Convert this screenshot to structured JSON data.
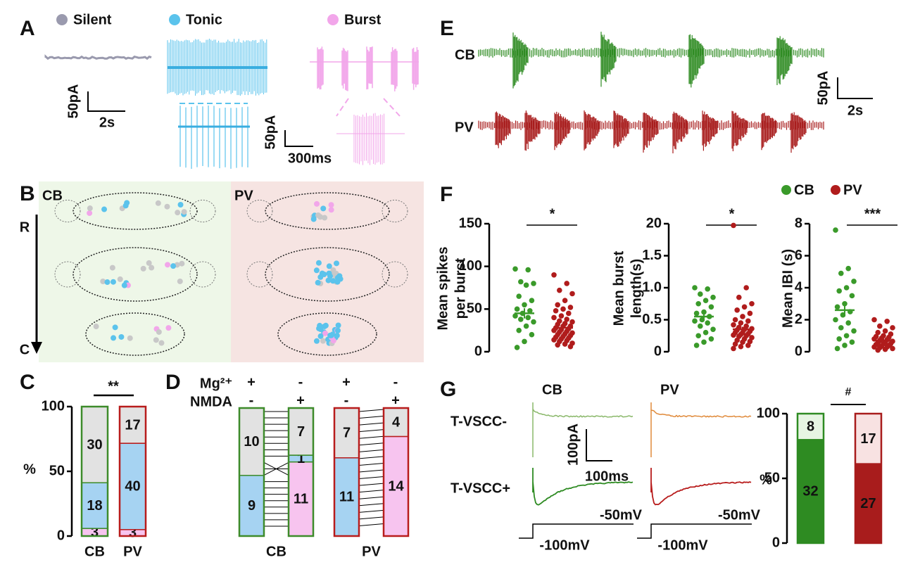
{
  "A": {
    "label": "A",
    "legend": [
      {
        "name": "Silent",
        "color": "#9a9aae"
      },
      {
        "name": "Tonic",
        "color": "#5bc3ec"
      },
      {
        "name": "Burst",
        "color": "#f2a6ea"
      }
    ],
    "scale_long": {
      "y": "50pA",
      "x": "2s"
    },
    "scale_zoom": {
      "y": "50pA",
      "x": "300ms"
    }
  },
  "B": {
    "label": "B",
    "groups": [
      "CB",
      "PV"
    ],
    "axis_top": "R",
    "axis_bottom": "C"
  },
  "C": {
    "label": "C",
    "significance": "**",
    "ylabel": "%",
    "ylim": [
      0,
      100
    ],
    "yticks": [
      0,
      50,
      100
    ],
    "categories": [
      "CB",
      "PV"
    ],
    "category_colors": [
      "#3d8b2a",
      "#b81c1c"
    ],
    "series": [
      {
        "color": "#f7c4ef",
        "values": [
          3,
          3
        ]
      },
      {
        "color": "#a6d3f2",
        "values": [
          18,
          40
        ]
      },
      {
        "color": "#e2e2e2",
        "values": [
          30,
          17
        ]
      }
    ]
  },
  "D": {
    "label": "D",
    "rows": [
      {
        "name": "Mg²⁺",
        "signs": [
          "+",
          "-",
          "+",
          "-"
        ]
      },
      {
        "name": "NMDA",
        "signs": [
          "-",
          "+",
          "-",
          "+"
        ]
      }
    ],
    "groups": [
      {
        "name": "CB",
        "color": "#3d8b2a",
        "bars": [
          {
            "values": [
              9,
              10
            ],
            "colors": [
              "#a6d3f2",
              "#e2e2e2"
            ]
          },
          {
            "values": [
              11,
              1,
              7
            ],
            "colors": [
              "#f7c4ef",
              "#a6d3f2",
              "#e2e2e2"
            ]
          }
        ]
      },
      {
        "name": "PV",
        "color": "#b81c1c",
        "bars": [
          {
            "values": [
              11,
              7
            ],
            "colors": [
              "#a6d3f2",
              "#e2e2e2"
            ]
          },
          {
            "values": [
              14,
              4
            ],
            "colors": [
              "#f7c4ef",
              "#e2e2e2"
            ]
          }
        ]
      }
    ]
  },
  "E": {
    "label": "E",
    "traces": [
      {
        "name": "CB",
        "color": "#2e8b22"
      },
      {
        "name": "PV",
        "color": "#a81c1c"
      }
    ],
    "scale": {
      "y": "50pA",
      "x": "2s"
    }
  },
  "F": {
    "label": "F",
    "legend": [
      {
        "name": "CB",
        "color": "#3a9a2a"
      },
      {
        "name": "PV",
        "color": "#b01c1c"
      }
    ],
    "plots": [
      {
        "type": "scatter",
        "ylabel": [
          "Mean spikes",
          "per burst"
        ],
        "ylim": [
          0,
          150
        ],
        "yticks": [
          0,
          50,
          100,
          150
        ],
        "significance": "*",
        "groups": [
          {
            "values": [
              97,
              96,
              82,
              80,
              78,
              65,
              60,
              55,
              50,
              48,
              45,
              42,
              40,
              38,
              35,
              30,
              25,
              20,
              12,
              5
            ],
            "mean": 45,
            "error": 6
          },
          {
            "values": [
              90,
              80,
              72,
              68,
              60,
              55,
              52,
              50,
              48,
              45,
              42,
              40,
              38,
              36,
              35,
              33,
              32,
              30,
              30,
              28,
              27,
              26,
              25,
              24,
              23,
              22,
              21,
              20,
              19,
              18,
              17,
              16,
              15,
              14,
              13,
              12,
              10,
              9,
              8,
              6
            ],
            "mean": 28,
            "error": 3
          }
        ]
      },
      {
        "type": "scatter",
        "ylabel": [
          "Mean burst",
          "length(s)"
        ],
        "ylim": [
          0,
          20
        ],
        "yticks": [
          0,
          0.5,
          {
            "value": 1,
            "label": "1.0"
          },
          1.5,
          20
        ],
        "significance": "*",
        "groups": [
          {
            "values": [
              1.0,
              0.98,
              0.9,
              0.85,
              0.8,
              0.75,
              0.7,
              0.62,
              0.6,
              0.55,
              0.5,
              0.48,
              0.45,
              0.4,
              0.35,
              0.3,
              0.25,
              0.2,
              0.15,
              0.1
            ],
            "mean": 0.55,
            "error": 0.06
          },
          {
            "values": [
              19,
              1.0,
              0.85,
              0.75,
              0.7,
              0.65,
              0.6,
              0.55,
              0.5,
              0.48,
              0.45,
              0.42,
              0.4,
              0.38,
              0.36,
              0.35,
              0.34,
              0.32,
              0.3,
              0.3,
              0.28,
              0.27,
              0.26,
              0.25,
              0.24,
              0.22,
              0.2,
              0.18,
              0.16,
              0.15,
              0.12,
              0.1,
              0.08,
              0.05
            ],
            "mean": 0.35,
            "error": 0.04
          }
        ]
      },
      {
        "type": "scatter",
        "ylabel": [
          "Mean IBI (s)"
        ],
        "ylim": [
          0,
          8
        ],
        "yticks": [
          0,
          2,
          4,
          6,
          8
        ],
        "significance": "***",
        "groups": [
          {
            "values": [
              7.6,
              5.2,
              4.9,
              4.4,
              4.0,
              3.8,
              3.5,
              3.0,
              2.8,
              2.5,
              2.3,
              2.0,
              1.8,
              1.5,
              1.3,
              1.0,
              0.8,
              0.6,
              0.4,
              0.2
            ],
            "mean": 2.6,
            "error": 0.4
          },
          {
            "values": [
              2.0,
              1.9,
              1.6,
              1.5,
              1.3,
              1.2,
              1.1,
              1.0,
              0.95,
              0.9,
              0.85,
              0.8,
              0.75,
              0.7,
              0.65,
              0.6,
              0.55,
              0.5,
              0.5,
              0.45,
              0.4,
              0.35,
              0.3,
              0.3,
              0.25,
              0.2,
              0.15,
              0.1
            ],
            "mean": 0.7,
            "error": 0.1
          }
        ]
      }
    ]
  },
  "G": {
    "label": "G",
    "traces": [
      {
        "name": "CB",
        "color": "#2e8b22",
        "light": "#8ab86a"
      },
      {
        "name": "PV",
        "color": "#b81c1c",
        "light": "#e08a3a"
      }
    ],
    "rows": [
      "T-VSCC-",
      "T-VSCC+"
    ],
    "scale": {
      "y": "100pA",
      "x": "100ms"
    },
    "hold": "-50mV",
    "step": "-100mV",
    "bar_chart": {
      "significance": "#",
      "ylabel": "%",
      "ylim": [
        0,
        100
      ],
      "yticks": [
        0,
        50,
        100
      ],
      "bars": [
        {
          "values": [
            32,
            8
          ],
          "colors": [
            "#2e8b22",
            "#e6f5e2"
          ],
          "outline": "#2e8b22"
        },
        {
          "values": [
            27,
            17
          ],
          "colors": [
            "#a81c1c",
            "#f8e2e2"
          ],
          "outline": "#a81c1c"
        }
      ]
    }
  }
}
